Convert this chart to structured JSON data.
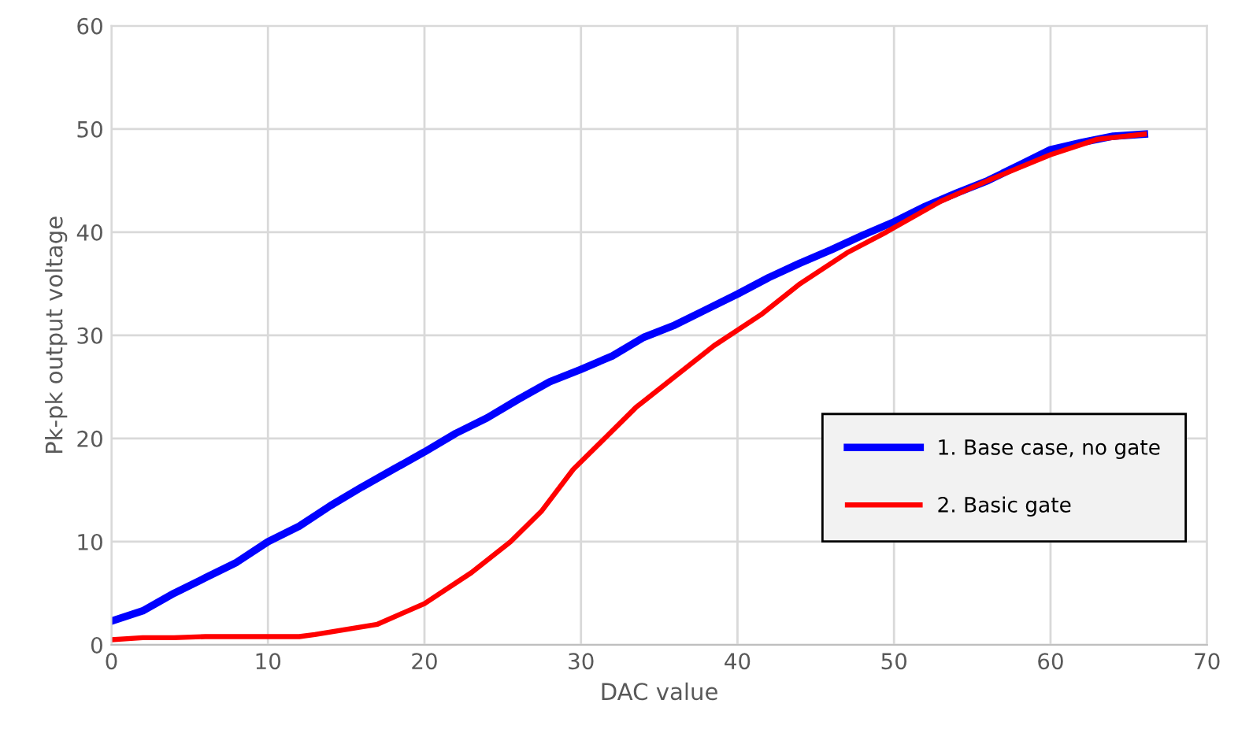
{
  "chart_data": {
    "type": "line",
    "xlabel": "DAC value",
    "ylabel": "Pk-pk output voltage",
    "xlim": [
      0,
      70
    ],
    "xticks": [
      0,
      10,
      20,
      30,
      40,
      50,
      60,
      70
    ],
    "ylim": [
      0,
      60
    ],
    "yticks": [
      0,
      10,
      20,
      30,
      40,
      50,
      60
    ],
    "grid": true,
    "legend": "right",
    "marker": "none",
    "line_style": "solid",
    "series": [
      {
        "name": "1. Base case, no gate",
        "color": "#0000ff",
        "x": [
          0,
          2,
          4,
          6,
          8,
          10,
          12,
          14,
          16,
          18,
          20,
          22,
          24,
          26,
          28,
          30,
          32,
          34,
          36,
          38,
          40,
          42,
          44,
          46,
          48,
          50,
          52,
          54,
          56,
          58,
          60,
          62,
          64,
          66
        ],
        "values": [
          2.3,
          3.3,
          5,
          6.5,
          8,
          10,
          11.5,
          13.5,
          15.3,
          17,
          18.7,
          20.5,
          22,
          23.8,
          25.5,
          26.7,
          28,
          29.8,
          31,
          32.5,
          34,
          35.6,
          37,
          38.3,
          39.7,
          41,
          42.5,
          43.8,
          45,
          46.5,
          48,
          48.7,
          49.3,
          49.5
        ]
      },
      {
        "name": "2. Basic gate",
        "color": "#ff0000",
        "x": [
          0,
          2,
          4,
          6,
          8,
          10,
          12,
          13,
          15,
          17,
          18.5,
          20,
          23,
          25.5,
          27.5,
          29.5,
          31.5,
          33.5,
          36,
          38.5,
          41.5,
          44,
          47,
          49.5,
          53,
          56,
          60,
          63,
          66
        ],
        "values": [
          0.5,
          0.7,
          0.7,
          0.8,
          0.8,
          0.8,
          0.8,
          1,
          1.5,
          2,
          3,
          4,
          7,
          10,
          13,
          17,
          20,
          23,
          26,
          29,
          32,
          35,
          38,
          40,
          43,
          45,
          47.5,
          49,
          49.5
        ]
      }
    ]
  }
}
